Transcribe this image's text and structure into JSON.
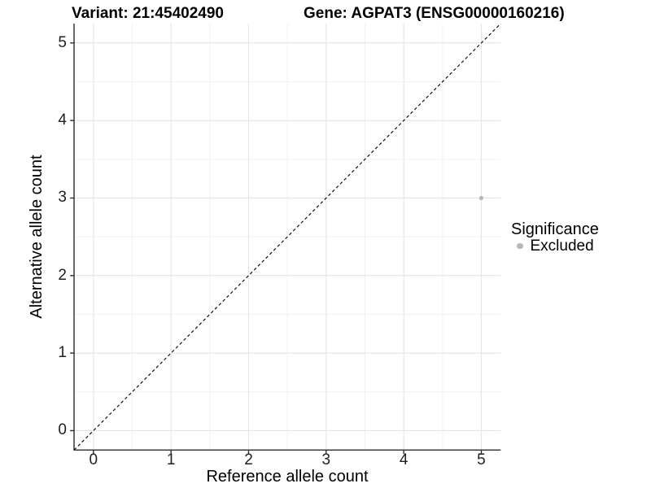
{
  "chart_data": {
    "type": "scatter",
    "title_left": "Variant: 21:45402490",
    "title_right": "Gene: AGPAT3 (ENSG00000160216)",
    "xlabel": "Reference allele count",
    "ylabel": "Alternative allele count",
    "xlim": [
      -0.25,
      5.25
    ],
    "ylim": [
      -0.25,
      5.25
    ],
    "x_breaks": [
      0,
      1,
      2,
      3,
      4,
      5
    ],
    "y_breaks": [
      0,
      1,
      2,
      3,
      4,
      5
    ],
    "x_minor_breaks": [
      0.5,
      1.5,
      2.5,
      3.5,
      4.5
    ],
    "y_minor_breaks": [
      0.5,
      1.5,
      2.5,
      3.5,
      4.5
    ],
    "grid": "on",
    "series": [
      {
        "name": "Excluded",
        "color": "#b7b7b7",
        "points": [
          {
            "x": 5,
            "y": 3
          }
        ]
      }
    ],
    "reference_line": {
      "kind": "identity",
      "style": "dashed",
      "color": "#000000"
    },
    "legend": {
      "title": "Significance",
      "position": "right",
      "items": [
        {
          "label": "Excluded",
          "color": "#b7b7b7"
        }
      ]
    },
    "colors": {
      "grid_major": "#e4e4e4",
      "grid_minor": "#f1f1f1",
      "axis": "#2b2b2b",
      "background": "#ffffff"
    }
  }
}
